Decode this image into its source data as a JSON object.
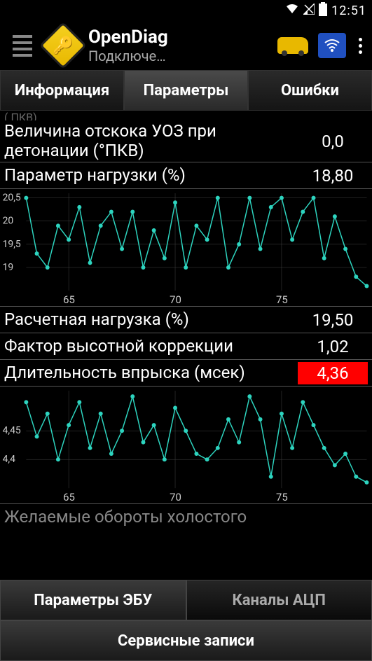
{
  "status": {
    "time": "12:51"
  },
  "header": {
    "title": "OpenDiag",
    "subtitle": "Подключе…"
  },
  "tabs": {
    "info": "Информация",
    "params": "Параметры",
    "errors": "Ошибки"
  },
  "params": {
    "partial_top": "( ПКВ)",
    "knock": {
      "label": "Величина отскока УОЗ при детонации (°ПКВ)",
      "value": "0,0"
    },
    "load": {
      "label": "Параметр нагрузки (%)",
      "value": "18,80"
    },
    "calc_load": {
      "label": "Расчетная нагрузка (%)",
      "value": "19,50"
    },
    "altitude": {
      "label": "Фактор высотной коррекции",
      "value": "1,02"
    },
    "injection": {
      "label": "Длительность впрыска (мсек)",
      "value": "4,36",
      "highlight": true
    },
    "idle": {
      "label": "Желаемые обороты холостого"
    }
  },
  "chart1": {
    "type": "line",
    "color": "#2dd4bf",
    "background": "#000000",
    "grid_color": "#444444",
    "yticks": [
      "20,5",
      "20",
      "19,5",
      "19"
    ],
    "xticks": [
      "65",
      "70",
      "75"
    ],
    "xlim": [
      63,
      79
    ],
    "ylim": [
      18.5,
      20.6
    ],
    "marker": "circle",
    "points": [
      [
        63,
        20.5
      ],
      [
        63.5,
        19.3
      ],
      [
        64,
        19.0
      ],
      [
        64.5,
        19.9
      ],
      [
        65,
        19.6
      ],
      [
        65.5,
        20.3
      ],
      [
        66,
        19.1
      ],
      [
        66.5,
        19.9
      ],
      [
        67,
        20.2
      ],
      [
        67.5,
        19.4
      ],
      [
        68,
        20.2
      ],
      [
        68.5,
        19.0
      ],
      [
        69,
        19.8
      ],
      [
        69.5,
        19.2
      ],
      [
        70,
        20.4
      ],
      [
        70.5,
        19.0
      ],
      [
        71,
        19.9
      ],
      [
        71.5,
        19.6
      ],
      [
        72,
        20.5
      ],
      [
        72.5,
        19.0
      ],
      [
        73,
        19.5
      ],
      [
        73.5,
        20.5
      ],
      [
        74,
        19.4
      ],
      [
        74.5,
        20.3
      ],
      [
        75,
        20.5
      ],
      [
        75.5,
        19.6
      ],
      [
        76,
        20.2
      ],
      [
        76.5,
        20.5
      ],
      [
        77,
        19.2
      ],
      [
        77.5,
        20.1
      ],
      [
        78,
        19.4
      ],
      [
        78.5,
        18.8
      ],
      [
        79,
        18.6
      ]
    ]
  },
  "chart2": {
    "type": "line",
    "color": "#2dd4bf",
    "background": "#000000",
    "grid_color": "#444444",
    "yticks": [
      "4,45",
      "4,4"
    ],
    "xticks": [
      "65",
      "70",
      "75"
    ],
    "xlim": [
      63,
      79
    ],
    "ylim": [
      4.35,
      4.52
    ],
    "marker": "circle",
    "points": [
      [
        63,
        4.5
      ],
      [
        63.5,
        4.44
      ],
      [
        64,
        4.48
      ],
      [
        64.5,
        4.4
      ],
      [
        65,
        4.46
      ],
      [
        65.5,
        4.5
      ],
      [
        66,
        4.42
      ],
      [
        66.5,
        4.48
      ],
      [
        67,
        4.41
      ],
      [
        67.5,
        4.45
      ],
      [
        68,
        4.51
      ],
      [
        68.5,
        4.43
      ],
      [
        69,
        4.46
      ],
      [
        69.5,
        4.4
      ],
      [
        70,
        4.49
      ],
      [
        70.5,
        4.45
      ],
      [
        71,
        4.41
      ],
      [
        71.5,
        4.4
      ],
      [
        72,
        4.42
      ],
      [
        72.5,
        4.47
      ],
      [
        73,
        4.43
      ],
      [
        73.5,
        4.51
      ],
      [
        74,
        4.47
      ],
      [
        74.5,
        4.37
      ],
      [
        75,
        4.48
      ],
      [
        75.5,
        4.42
      ],
      [
        76,
        4.5
      ],
      [
        76.5,
        4.46
      ],
      [
        77,
        4.42
      ],
      [
        77.5,
        4.39
      ],
      [
        78,
        4.41
      ],
      [
        78.5,
        4.37
      ],
      [
        79,
        4.36
      ]
    ]
  },
  "bottom_tabs": {
    "ecu": "Параметры ЭБУ",
    "adc": "Каналы АЦП"
  },
  "service_btn": "Сервисные записи"
}
